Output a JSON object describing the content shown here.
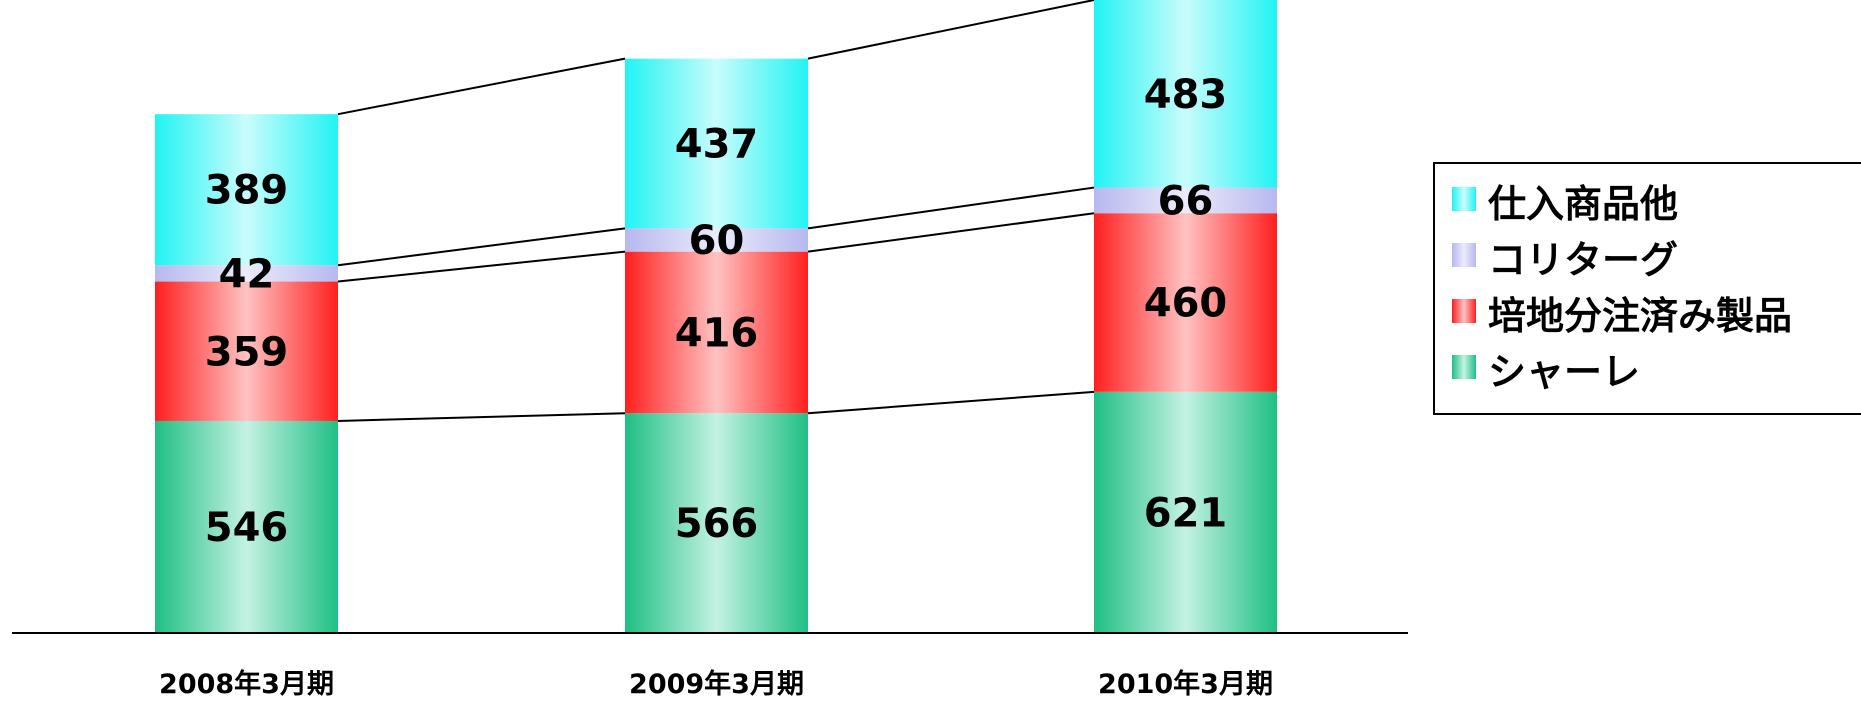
{
  "chart_data": {
    "type": "bar",
    "stacked": true,
    "categories": [
      "2008年3月期",
      "2009年3月期",
      "2010年3月期"
    ],
    "series": [
      {
        "name": "シャーレ",
        "values": [
          546,
          566,
          621
        ],
        "color": "#1fbf84",
        "light": "#c4f2e2"
      },
      {
        "name": "培地分注済み製品",
        "values": [
          359,
          416,
          460
        ],
        "color": "#ff1f1f",
        "light": "#ffc2c2"
      },
      {
        "name": "コリターグ",
        "values": [
          42,
          60,
          66
        ],
        "color": "#b7b8ee",
        "light": "#ebebfb"
      },
      {
        "name": "仕入商品他",
        "values": [
          389,
          437,
          483
        ],
        "color": "#22f3f3",
        "light": "#c9fcfc"
      }
    ],
    "legend_order": [
      "仕入商品他",
      "コリターグ",
      "培地分注済み製品",
      "シャーレ"
    ],
    "legend_position": "right",
    "title": "",
    "xlabel": "",
    "ylabel": "",
    "ylim": [
      0,
      1630
    ],
    "grid": false,
    "connector_lines": true
  }
}
